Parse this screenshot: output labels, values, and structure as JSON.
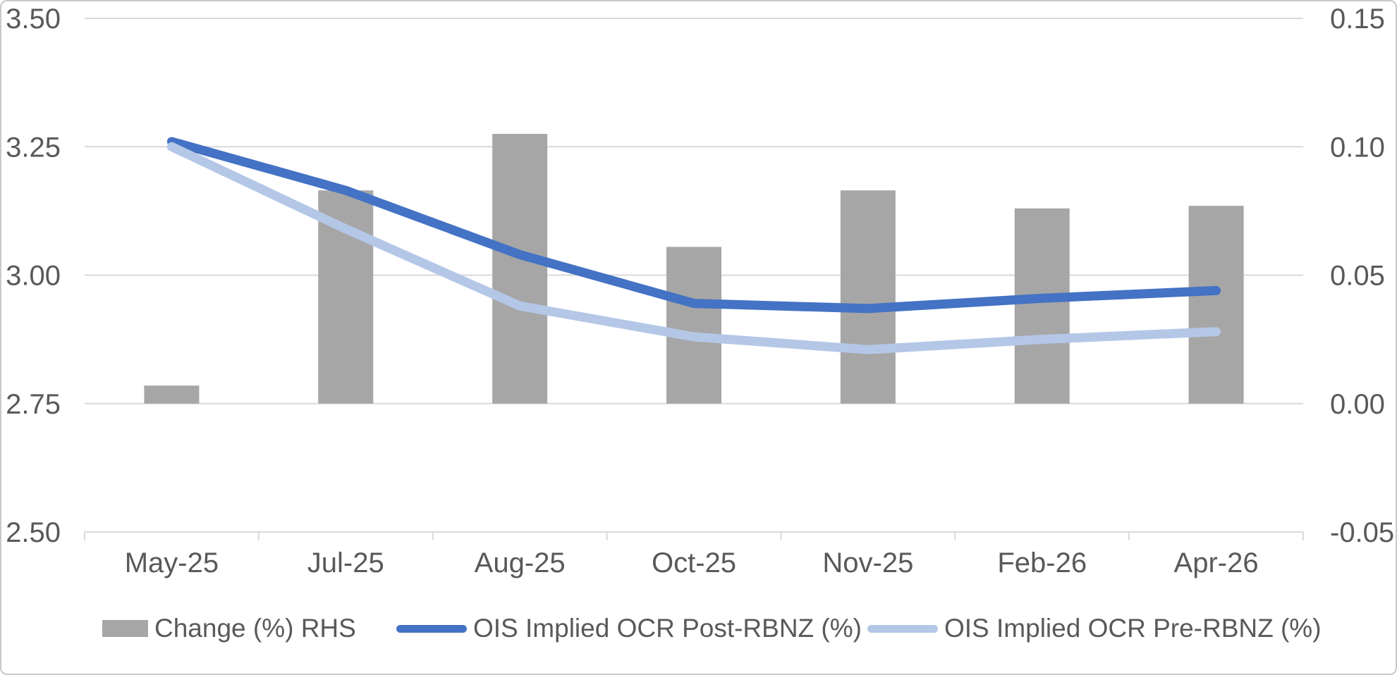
{
  "chart_data": {
    "type": "combo-bar-line",
    "title": "",
    "categories": [
      "May-25",
      "Jul-25",
      "Aug-25",
      "Oct-25",
      "Nov-25",
      "Feb-26",
      "Apr-26"
    ],
    "series": [
      {
        "name": "Change (%) RHS",
        "type": "bar",
        "axis": "right",
        "color": "#a6a6a6",
        "values": [
          0.007,
          0.083,
          0.105,
          0.061,
          0.083,
          0.076,
          0.077
        ]
      },
      {
        "name": "OIS Implied OCR Post-RBNZ (%)",
        "type": "line",
        "axis": "left",
        "color": "#4472c4",
        "values": [
          3.26,
          3.165,
          3.04,
          2.945,
          2.935,
          2.955,
          2.97
        ]
      },
      {
        "name": "OIS Implied OCR Pre-RBNZ (%)",
        "type": "line",
        "axis": "left",
        "color": "#b4c7e7",
        "values": [
          3.25,
          3.09,
          2.94,
          2.88,
          2.855,
          2.875,
          2.89
        ]
      }
    ],
    "left_axis": {
      "min": 2.5,
      "max": 3.5,
      "tick_step": 0.25,
      "tick_labels": [
        "3.50",
        "3.25",
        "3.00",
        "2.75",
        "2.50"
      ]
    },
    "right_axis": {
      "min": -0.05,
      "max": 0.15,
      "tick_step": 0.05,
      "tick_labels": [
        "0.15",
        "0.10",
        "0.05",
        "0.00",
        "-0.05"
      ]
    },
    "grid": true,
    "gridline_color": "#d9d9d9",
    "axis_text_color": "#595959",
    "legend_position": "bottom"
  }
}
